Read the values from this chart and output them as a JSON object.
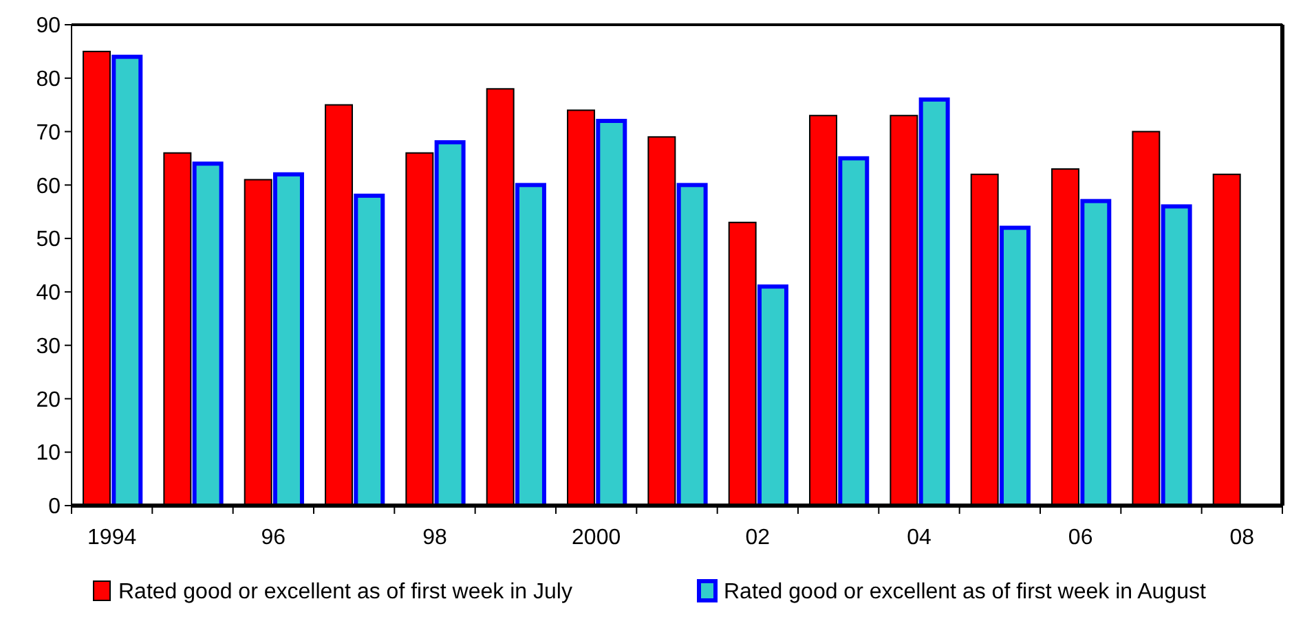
{
  "chart_data": {
    "type": "bar",
    "categories": [
      "1994",
      null,
      "96",
      null,
      "98",
      null,
      "2000",
      null,
      "02",
      null,
      "04",
      null,
      "06",
      null,
      "08"
    ],
    "series": [
      {
        "name": "Rated good or excellent as of first week in July",
        "color": "#ff0000",
        "values": [
          85,
          66,
          61,
          75,
          66,
          78,
          74,
          69,
          53,
          73,
          73,
          62,
          63,
          70,
          62
        ]
      },
      {
        "name": "Rated good or excellent as of first week in August",
        "color": "#33cccc",
        "values": [
          84,
          64,
          62,
          58,
          68,
          60,
          72,
          60,
          41,
          65,
          76,
          52,
          57,
          56,
          null
        ]
      }
    ],
    "ylim": [
      0,
      90
    ],
    "yticks": [
      0,
      10,
      20,
      30,
      40,
      50,
      60,
      70,
      80,
      90
    ],
    "grid": false,
    "legend": "bottom"
  }
}
